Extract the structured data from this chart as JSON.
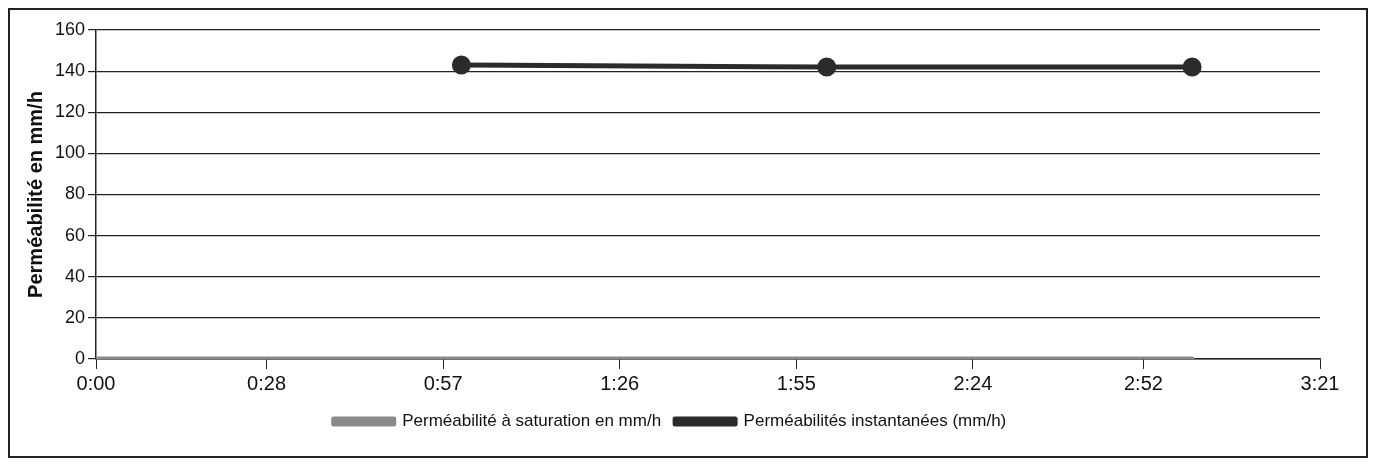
{
  "chart_data": {
    "type": "line",
    "ylabel": "Perméabilité en mm/h",
    "xlim": [
      0,
      3.35
    ],
    "xticks": [
      {
        "value": 0,
        "label": "0:00"
      },
      {
        "value": 0.4667,
        "label": "0:28"
      },
      {
        "value": 0.95,
        "label": "0:57"
      },
      {
        "value": 1.4333,
        "label": "1:26"
      },
      {
        "value": 1.9167,
        "label": "1:55"
      },
      {
        "value": 2.4,
        "label": "2:24"
      },
      {
        "value": 2.8667,
        "label": "2:52"
      },
      {
        "value": 3.35,
        "label": "3:21"
      }
    ],
    "ylim": [
      0,
      160
    ],
    "yticks": [
      0,
      20,
      40,
      60,
      80,
      100,
      120,
      140,
      160
    ],
    "grid": "y",
    "legend": "bottom",
    "series": [
      {
        "name": "Perméabilité à saturation en mm/h",
        "color": "#8a8a8a",
        "x": [
          0,
          3
        ],
        "values": [
          0,
          0
        ],
        "marker": "none"
      },
      {
        "name": "Perméabilités instantanées (mm/h)",
        "color": "#2b2b2b",
        "x": [
          1,
          2,
          3
        ],
        "values": [
          143,
          142,
          142
        ],
        "marker": "circle"
      }
    ]
  }
}
